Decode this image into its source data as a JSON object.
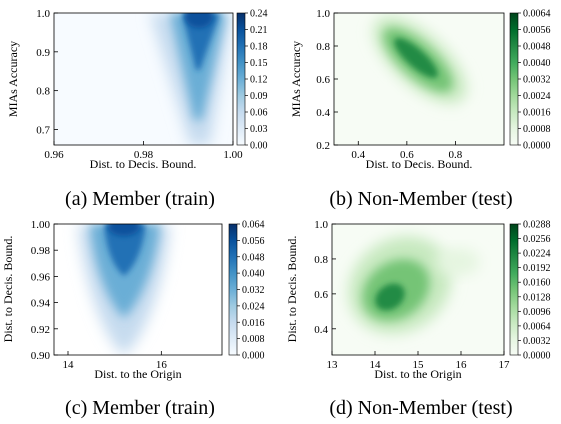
{
  "chart_data": [
    {
      "type": "heatmap",
      "cmap": "Blues",
      "xlabel": "Dist. to Decis. Bound.",
      "ylabel": "MIAs Accuracy",
      "xlim": [
        0.96,
        1.0
      ],
      "ylim": [
        0.66,
        1.0
      ],
      "xticks": [
        "0.96",
        "0.98",
        "1.00"
      ],
      "yticks": [
        "0.7",
        "0.8",
        "0.9",
        "1.0"
      ],
      "colorbar_ticks": [
        "0.24",
        "0.21",
        "0.18",
        "0.15",
        "0.12",
        "0.09",
        "0.06",
        "0.03",
        "0.00"
      ],
      "colorbar_max": 0.24,
      "peak": {
        "x": 0.99,
        "y": 1.0
      },
      "caption": "(a) Member (train)"
    },
    {
      "type": "heatmap",
      "cmap": "Greens",
      "xlabel": "Dist. to Decis. Bound.",
      "ylabel": "MIAs Accuracy",
      "xlim": [
        0.3,
        1.0
      ],
      "ylim": [
        0.2,
        1.0
      ],
      "xticks": [
        "0.4",
        "0.6",
        "0.8"
      ],
      "yticks": [
        "0.2",
        "0.4",
        "0.6",
        "0.8",
        "1.0"
      ],
      "colorbar_ticks": [
        "0.0064",
        "0.0056",
        "0.0048",
        "0.0040",
        "0.0032",
        "0.0024",
        "0.0016",
        "0.0008",
        "0.0000"
      ],
      "colorbar_max": 0.0064,
      "peak": {
        "x": 0.62,
        "y": 0.72
      },
      "caption": "(b) Non-Member (test)"
    },
    {
      "type": "heatmap",
      "cmap": "Blues",
      "xlabel": "Dist. to the Origin",
      "ylabel": "Dist. to Decis. Bound.",
      "xlim": [
        13.7,
        17.3
      ],
      "ylim": [
        0.9,
        1.0
      ],
      "xticks": [
        "14",
        "16"
      ],
      "yticks": [
        "0.90",
        "0.92",
        "0.94",
        "0.96",
        "0.98",
        "1.00"
      ],
      "colorbar_ticks": [
        "0.064",
        "0.056",
        "0.048",
        "0.040",
        "0.032",
        "0.024",
        "0.016",
        "0.008",
        "0.000"
      ],
      "colorbar_max": 0.064,
      "peak": {
        "x": 15.6,
        "y": 1.0
      },
      "caption": "(c) Member (train)"
    },
    {
      "type": "heatmap",
      "cmap": "Greens",
      "xlabel": "Dist. to the Origin",
      "ylabel": "Dist. to Decis. Bound.",
      "xlim": [
        13.0,
        17.0
      ],
      "ylim": [
        0.25,
        1.0
      ],
      "xticks": [
        "13",
        "14",
        "15",
        "16",
        "17"
      ],
      "yticks": [
        "0.4",
        "0.6",
        "0.8",
        "1.0"
      ],
      "colorbar_ticks": [
        "0.0288",
        "0.0256",
        "0.0224",
        "0.0192",
        "0.0160",
        "0.0128",
        "0.0096",
        "0.0064",
        "0.0032",
        "0.0000"
      ],
      "colorbar_max": 0.0288,
      "peak": {
        "x": 14.5,
        "y": 0.62
      },
      "caption": "(d) Non-Member (test)"
    }
  ],
  "colors": {
    "blues": [
      "#f7fbff",
      "#deebf7",
      "#c6dbef",
      "#9ecae1",
      "#6baed6",
      "#4292c6",
      "#2171b5",
      "#08519c",
      "#08306b"
    ],
    "greens": [
      "#f7fcf5",
      "#e5f5e0",
      "#c7e9c0",
      "#a1d99b",
      "#74c476",
      "#41ab5d",
      "#238b45",
      "#006d2c",
      "#00441b"
    ]
  }
}
